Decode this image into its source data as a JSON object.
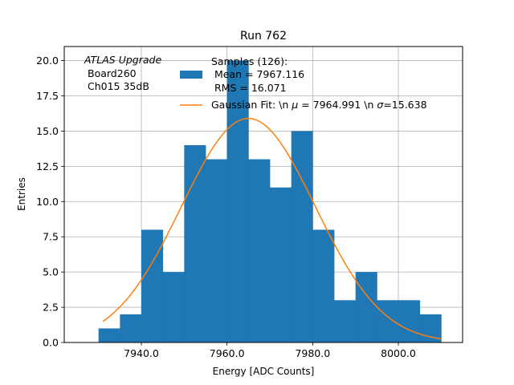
{
  "chart_data": {
    "type": "bar",
    "title": "Run 762",
    "xlabel": "Energy [ADC Counts]",
    "ylabel": "Entries",
    "xlim": [
      7922,
      8015
    ],
    "ylim": [
      0,
      21
    ],
    "xticks": [
      7940,
      7960,
      7980,
      8000
    ],
    "xtick_labels": [
      "7940.0",
      "7960.0",
      "7980.0",
      "8000.0"
    ],
    "yticks": [
      0,
      2.5,
      5,
      7.5,
      10,
      12.5,
      15,
      17.5,
      20
    ],
    "ytick_labels": [
      "0.0",
      "2.5",
      "5.0",
      "7.5",
      "10.0",
      "12.5",
      "15.0",
      "17.5",
      "20.0"
    ],
    "grid": true,
    "bin_edges": [
      7930,
      7935,
      7940,
      7945,
      7950,
      7955,
      7960,
      7965,
      7970,
      7975,
      7980,
      7985,
      7990,
      7995,
      8000,
      8005,
      8010
    ],
    "counts": [
      1,
      2,
      8,
      5,
      14,
      13,
      20,
      13,
      11,
      15,
      8,
      3,
      5,
      3,
      3,
      2
    ],
    "gaussian_fit": {
      "mu": 7964.991,
      "sigma": 15.638,
      "amplitude": 15.9,
      "x_range": [
        7931,
        8010
      ]
    },
    "annotation_lines": [
      "ATLAS Upgrade",
      "Board260",
      "Ch015 35dB"
    ],
    "legend": {
      "position": "top-right",
      "histogram_lines": [
        "Samples (126):",
        "Mean = 7967.116",
        "RMS = 16.071"
      ],
      "fit_label_prefix": "Gaussian Fit: \\n ",
      "fit_mu_label": " = 7964.991 \\n ",
      "fit_sigma_label": "=15.638"
    },
    "colors": {
      "histogram": "#1f77b4",
      "fit": "#ff7f0e",
      "grid": "#b0b0b0"
    }
  }
}
